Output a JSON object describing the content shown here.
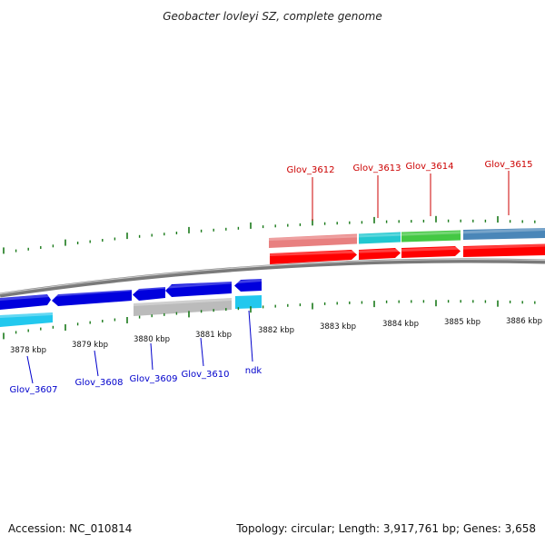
{
  "title": "Geobacter lovleyi SZ, complete genome",
  "footer": {
    "accession": "Accession: NC_010814",
    "summary": "Topology: circular; Length: 3,917,761 bp; Genes: 3,658"
  },
  "colors": {
    "background": "#ffffff",
    "backbone": "#7a7a7a",
    "tick": "#1a7a1a",
    "forward_label": "#cc0000",
    "reverse_label": "#0000cc",
    "cds_forward": "#ff0000",
    "cds_reverse": "#0000dd"
  },
  "scale": {
    "unit": "kbp",
    "labels": [
      "3878 kbp",
      "3879 kbp",
      "3880 kbp",
      "3881 kbp",
      "3882 kbp",
      "3883 kbp",
      "3884 kbp",
      "3885 kbp",
      "3886 kbp"
    ]
  },
  "forward_genes": [
    {
      "name": "Glov_3612",
      "cog_color": "#e88080"
    },
    {
      "name": "Glov_3613",
      "cog_color": "#22c8d0"
    },
    {
      "name": "Glov_3614",
      "cog_color": "#44c844"
    },
    {
      "name": "Glov_3615",
      "cog_color": "#4a86b8"
    }
  ],
  "reverse_genes": [
    {
      "name": "Glov_3607",
      "cog_color": "#22c8ee"
    },
    {
      "name": "Glov_3608",
      "cog_color": "#0000dd"
    },
    {
      "name": "Glov_3609",
      "cog_color": "#bbbbbb"
    },
    {
      "name": "Glov_3610",
      "cog_color": "#0000dd"
    },
    {
      "name": "ndk",
      "cog_color": "#22c8ee"
    }
  ]
}
